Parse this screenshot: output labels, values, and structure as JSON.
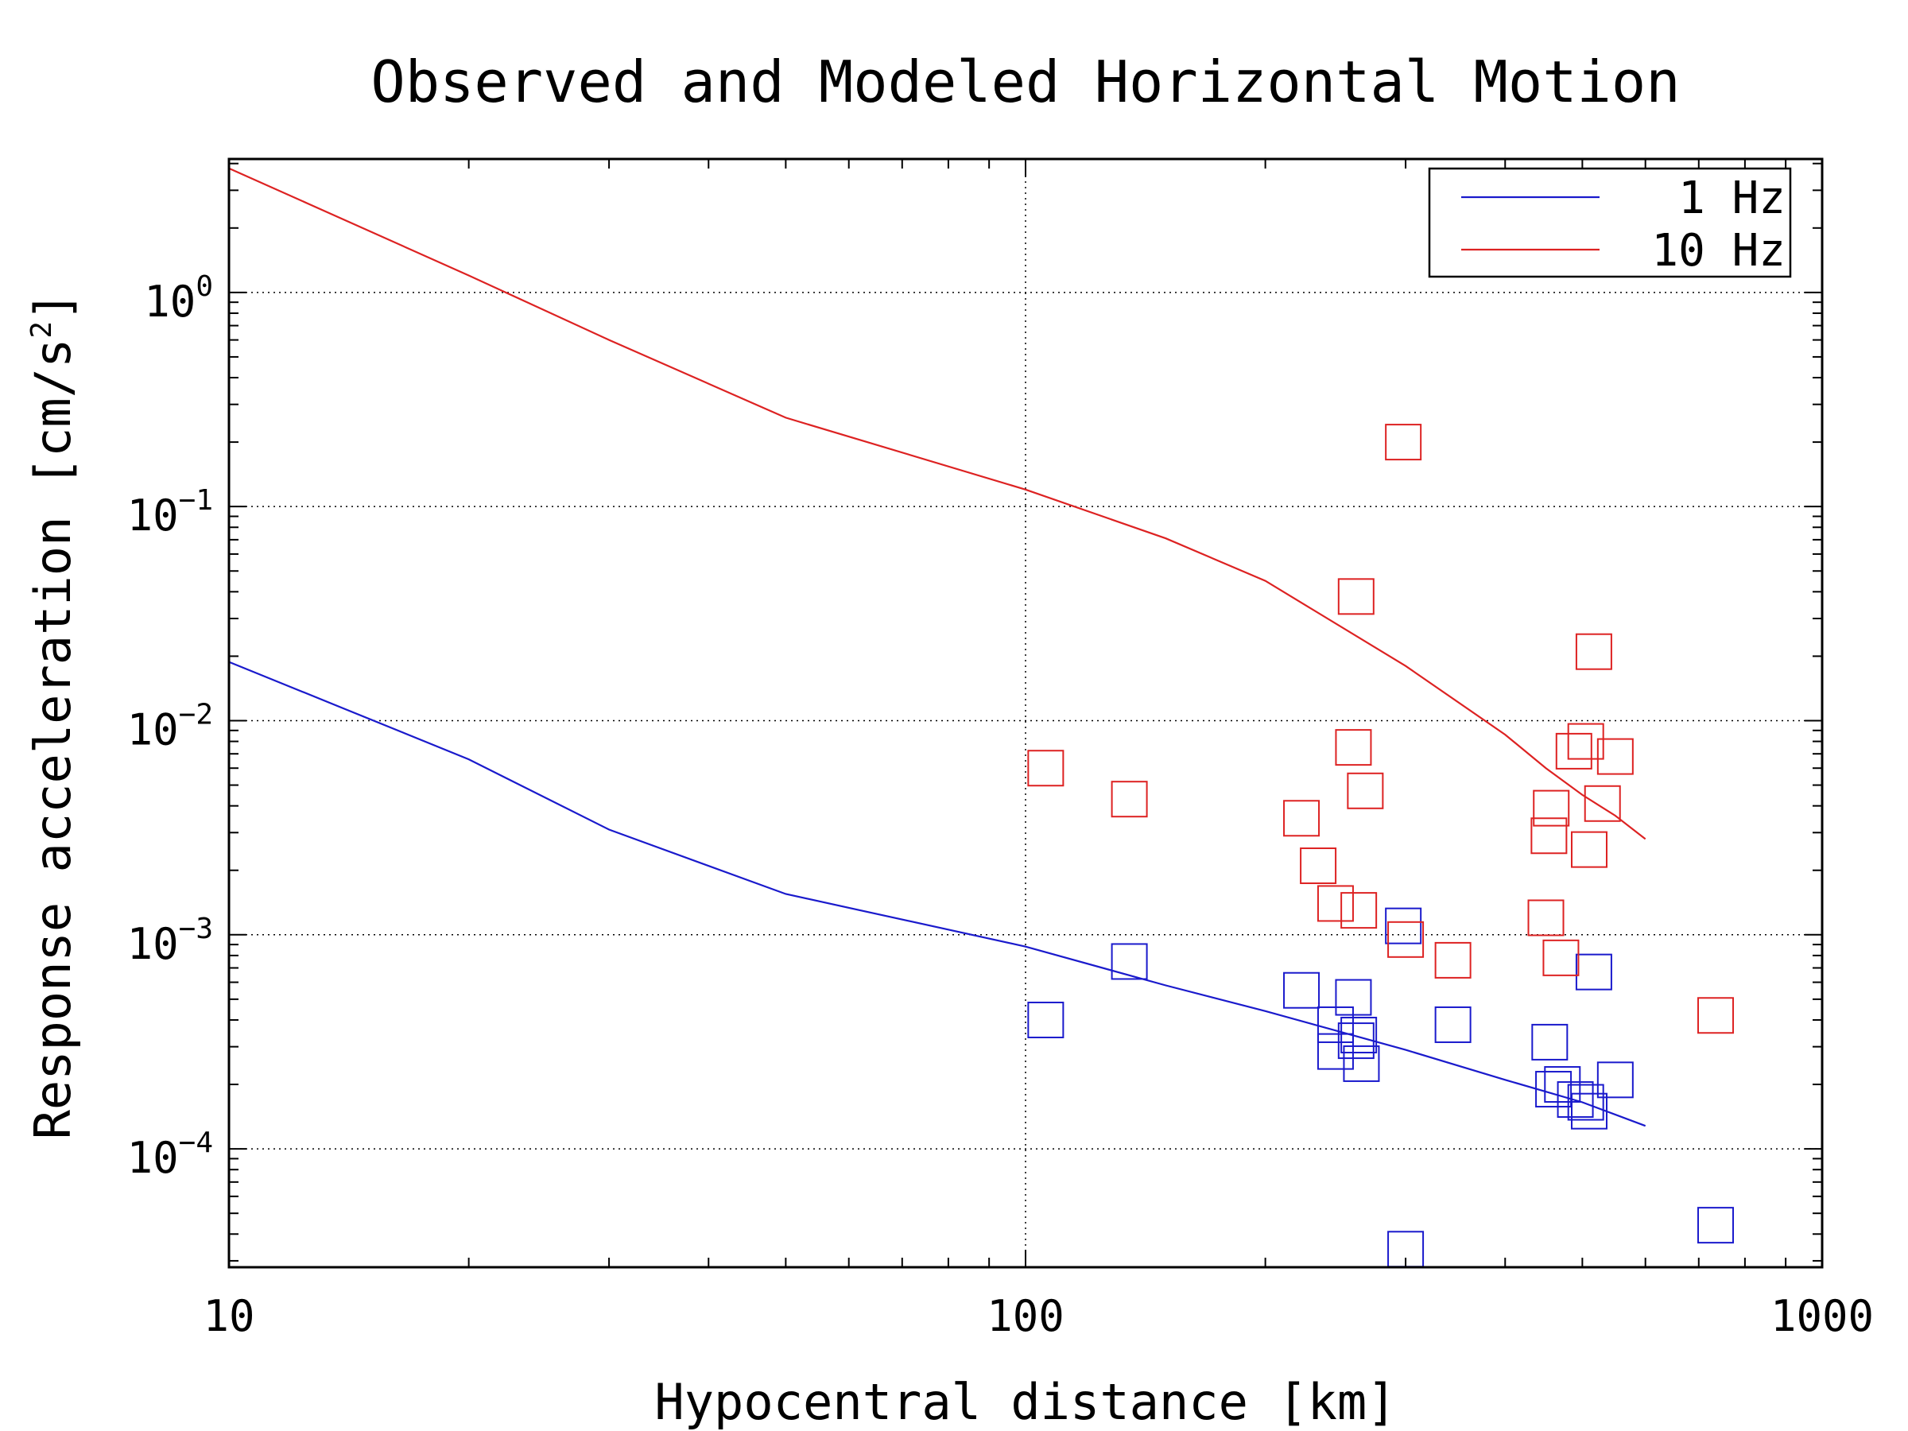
{
  "chart_data": {
    "type": "scatter",
    "title": "Observed and Modeled Horizontal Motion",
    "xlabel": "Hypocentral distance [km]",
    "ylabel_base": "Response acceleration [cm/s",
    "ylabel_exp": "2",
    "ylabel_close": "]",
    "x_scale": "log",
    "y_scale": "log",
    "xlim": [
      10,
      1000
    ],
    "ylim": [
      2.8e-05,
      4.2
    ],
    "x_ticks": [
      {
        "value": 10,
        "label": "10"
      },
      {
        "value": 100,
        "label": "100"
      },
      {
        "value": 1000,
        "label": "1000"
      }
    ],
    "y_ticks": [
      {
        "value": 1,
        "base": "10",
        "exp": "0"
      },
      {
        "value": 0.1,
        "base": "10",
        "exp": "−1"
      },
      {
        "value": 0.01,
        "base": "10",
        "exp": "−2"
      },
      {
        "value": 0.001,
        "base": "10",
        "exp": "−3"
      },
      {
        "value": 0.0001,
        "base": "10",
        "exp": "−4"
      }
    ],
    "grid": "dotted",
    "legend_position": "top-right",
    "series": [
      {
        "name": "1 Hz",
        "color": "#1a1acc",
        "line": {
          "x": [
            10,
            20,
            30,
            50,
            100,
            150,
            200,
            300,
            400,
            500,
            600
          ],
          "y": [
            0.0188,
            0.0066,
            0.0031,
            0.00155,
            0.00088,
            0.00058,
            0.00044,
            0.00029,
            0.00021,
            0.000165,
            0.000128
          ]
        },
        "points": {
          "x": [
            106,
            135,
            222,
            245,
            245,
            258,
            260,
            262,
            264,
            298,
            300,
            344,
            455,
            460,
            472,
            490,
            505,
            510,
            517,
            550,
            735
          ],
          "y": [
            0.0004,
            0.00075,
            0.00055,
            0.000285,
            0.00038,
            0.00051,
            0.00032,
            0.00034,
            0.00025,
            0.0011,
            3.4e-05,
            0.00038,
            0.000315,
            0.00019,
            0.0002,
            0.00017,
            0.000165,
            0.00015,
            0.00067,
            0.00021,
            4.4e-05
          ]
        }
      },
      {
        "name": "10 Hz",
        "color": "#dd2222",
        "line": {
          "x": [
            10,
            20,
            30,
            50,
            100,
            150,
            200,
            300,
            400,
            450,
            500,
            550,
            600
          ],
          "y": [
            3.8,
            1.2,
            0.6,
            0.26,
            0.12,
            0.071,
            0.045,
            0.018,
            0.0086,
            0.006,
            0.0045,
            0.0036,
            0.0028
          ]
        },
        "points": {
          "x": [
            106,
            135,
            222,
            233,
            245,
            258,
            260,
            262,
            267,
            298,
            300,
            344,
            450,
            454,
            457,
            470,
            488,
            505,
            510,
            517,
            530,
            550,
            735
          ],
          "y": [
            0.006,
            0.0043,
            0.0035,
            0.0021,
            0.0014,
            0.0075,
            0.038,
            0.0013,
            0.0047,
            0.2,
            0.00095,
            0.00076,
            0.0012,
            0.0029,
            0.0039,
            0.00078,
            0.0072,
            0.008,
            0.0025,
            0.021,
            0.0041,
            0.0068,
            0.00042
          ]
        }
      }
    ]
  }
}
